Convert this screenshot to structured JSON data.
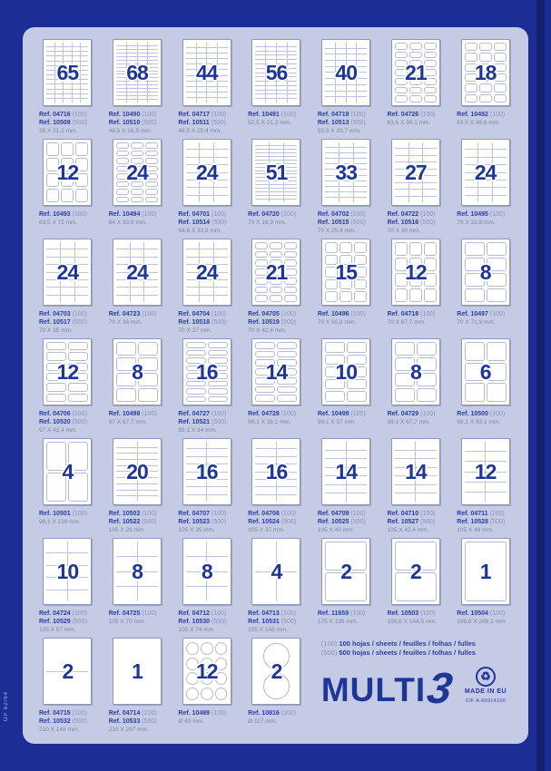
{
  "side_text": "OP 62/64",
  "footer": {
    "legend": [
      {
        "qty": "(100)",
        "text": "100 hojas / sheets / feuilles / folhas / fulles"
      },
      {
        "qty": "(500)",
        "text": "500 hojas / sheets / feuilles / folhas / fulles"
      }
    ],
    "brand": {
      "name": "MULTI",
      "three": "3"
    },
    "recycle_icon": "♻",
    "made_in": "MADE IN EU",
    "cif": "CIF A-60914166"
  },
  "colors": {
    "background": "#1c2e95",
    "panel": "#c6cbe5",
    "number": "#1e3697",
    "ref_text": "#2740a3",
    "muted_text": "#7d85a0"
  },
  "grid": {
    "rows": [
      {
        "cells": [
          {
            "n": "65",
            "refs": [
              {
                "ref": "Ref. 04716",
                "qty": "(100)"
              },
              {
                "ref": "Ref. 10509",
                "qty": "(500)"
              }
            ],
            "dims": "38 X 21,2 mm.",
            "cols": 5,
            "rows": 13,
            "style": "lined"
          },
          {
            "n": "68",
            "refs": [
              {
                "ref": "Ref. 10490",
                "qty": "(100)"
              },
              {
                "ref": "Ref. 10510",
                "qty": "(500)"
              }
            ],
            "dims": "48,5 X 16,9 mm.",
            "cols": 4,
            "rows": 17,
            "style": "lined"
          },
          {
            "n": "44",
            "refs": [
              {
                "ref": "Ref. 04717",
                "qty": "(100)"
              },
              {
                "ref": "Ref. 10511",
                "qty": "(500)"
              }
            ],
            "dims": "48,5 X 25,4 mm.",
            "cols": 4,
            "rows": 11,
            "style": "lined"
          },
          {
            "n": "56",
            "refs": [
              {
                "ref": "Ref. 10491",
                "qty": "(100)"
              }
            ],
            "dims": "52,5 X 21,2 mm.",
            "cols": 4,
            "rows": 14,
            "style": "lined"
          },
          {
            "n": "40",
            "refs": [
              {
                "ref": "Ref. 04719",
                "qty": "(100)"
              },
              {
                "ref": "Ref. 10513",
                "qty": "(500)"
              }
            ],
            "dims": "52,5 X 29,7 mm.",
            "cols": 4,
            "rows": 10,
            "style": "lined"
          },
          {
            "n": "21",
            "refs": [
              {
                "ref": "Ref. 04726",
                "qty": "(100)"
              }
            ],
            "dims": "63,5 X 38,1 mm.",
            "cols": 3,
            "rows": 7,
            "style": "rounded"
          },
          {
            "n": "18",
            "refs": [
              {
                "ref": "Ref. 10492",
                "qty": "(100)"
              }
            ],
            "dims": "63,5 X 46,6 mm.",
            "cols": 3,
            "rows": 6,
            "style": "rounded"
          }
        ]
      },
      {
        "cells": [
          {
            "n": "12",
            "refs": [
              {
                "ref": "Ref. 10493",
                "qty": "(100)"
              }
            ],
            "dims": "63,5 X 72 mm.",
            "cols": 3,
            "rows": 4,
            "style": "rounded"
          },
          {
            "n": "24",
            "refs": [
              {
                "ref": "Ref. 10494",
                "qty": "(100)"
              }
            ],
            "dims": "64 X 33,9 mm.",
            "cols": 3,
            "rows": 8,
            "style": "rounded"
          },
          {
            "n": "24",
            "refs": [
              {
                "ref": "Ref. 04701",
                "qty": "(100)"
              },
              {
                "ref": "Ref. 10514",
                "qty": "(500)"
              }
            ],
            "dims": "64,6 X 33,8 mm.",
            "cols": 3,
            "rows": 8,
            "style": "lined"
          },
          {
            "n": "51",
            "refs": [
              {
                "ref": "Ref. 04720",
                "qty": "(100)"
              }
            ],
            "dims": "70 X 16,9 mm.",
            "cols": 3,
            "rows": 17,
            "style": "lined"
          },
          {
            "n": "33",
            "refs": [
              {
                "ref": "Ref. 04702",
                "qty": "(100)"
              },
              {
                "ref": "Ref. 10515",
                "qty": "(500)"
              }
            ],
            "dims": "70 X 25,4 mm.",
            "cols": 3,
            "rows": 11,
            "style": "lined"
          },
          {
            "n": "27",
            "refs": [
              {
                "ref": "Ref. 04722",
                "qty": "(100)"
              },
              {
                "ref": "Ref. 10516",
                "qty": "(500)"
              }
            ],
            "dims": "70 X 30 mm.",
            "cols": 3,
            "rows": 9,
            "style": "lined"
          },
          {
            "n": "24",
            "refs": [
              {
                "ref": "Ref. 10495",
                "qty": "(100)"
              }
            ],
            "dims": "70 X 33,8 mm.",
            "cols": 3,
            "rows": 8,
            "style": "lined"
          }
        ]
      },
      {
        "cells": [
          {
            "n": "24",
            "refs": [
              {
                "ref": "Ref. 04703",
                "qty": "(100)"
              },
              {
                "ref": "Ref. 10517",
                "qty": "(500)"
              }
            ],
            "dims": "70 X 35 mm.",
            "cols": 3,
            "rows": 8,
            "style": "lined"
          },
          {
            "n": "24",
            "refs": [
              {
                "ref": "Ref. 04723",
                "qty": "(100)"
              }
            ],
            "dims": "70 X 36 mm.",
            "cols": 3,
            "rows": 8,
            "style": "lined"
          },
          {
            "n": "24",
            "refs": [
              {
                "ref": "Ref. 04704",
                "qty": "(100)"
              },
              {
                "ref": "Ref. 10518",
                "qty": "(500)"
              }
            ],
            "dims": "70 X 37 mm.",
            "cols": 3,
            "rows": 8,
            "style": "lined"
          },
          {
            "n": "21",
            "refs": [
              {
                "ref": "Ref. 04705",
                "qty": "(100)"
              },
              {
                "ref": "Ref. 10519",
                "qty": "(500)"
              }
            ],
            "dims": "70 X 42,4 mm.",
            "cols": 3,
            "rows": 7,
            "style": "rounded"
          },
          {
            "n": "15",
            "refs": [
              {
                "ref": "Ref. 10496",
                "qty": "(100)"
              }
            ],
            "dims": "70 X 50,8 mm.",
            "cols": 3,
            "rows": 5,
            "style": "rounded"
          },
          {
            "n": "12",
            "refs": [
              {
                "ref": "Ref. 04718",
                "qty": "(100)"
              }
            ],
            "dims": "70 X 67,7 mm.",
            "cols": 3,
            "rows": 4,
            "style": "rounded"
          },
          {
            "n": "8",
            "refs": [
              {
                "ref": "Ref. 10497",
                "qty": "(100)"
              }
            ],
            "dims": "70 X 71,9 mm.",
            "cols": 2,
            "rows": 4,
            "style": "rounded"
          }
        ]
      },
      {
        "cells": [
          {
            "n": "12",
            "refs": [
              {
                "ref": "Ref. 04706",
                "qty": "(100)"
              },
              {
                "ref": "Ref. 10520",
                "qty": "(500)"
              }
            ],
            "dims": "97 X 42,4 mm.",
            "cols": 2,
            "rows": 6,
            "style": "rounded"
          },
          {
            "n": "8",
            "refs": [
              {
                "ref": "Ref. 10498",
                "qty": "(100)"
              }
            ],
            "dims": "97 X 67,7 mm.",
            "cols": 2,
            "rows": 4,
            "style": "rounded"
          },
          {
            "n": "16",
            "refs": [
              {
                "ref": "Ref. 04727",
                "qty": "(100)"
              },
              {
                "ref": "Ref. 10521",
                "qty": "(500)"
              }
            ],
            "dims": "99,1 X 34 mm.",
            "cols": 2,
            "rows": 8,
            "style": "rounded"
          },
          {
            "n": "14",
            "refs": [
              {
                "ref": "Ref. 04728",
                "qty": "(100)"
              }
            ],
            "dims": "99,1 X 38,1 mm.",
            "cols": 2,
            "rows": 7,
            "style": "rounded"
          },
          {
            "n": "10",
            "refs": [
              {
                "ref": "Ref. 10499",
                "qty": "(100)"
              }
            ],
            "dims": "99,1 X 57 mm.",
            "cols": 2,
            "rows": 5,
            "style": "rounded"
          },
          {
            "n": "8",
            "refs": [
              {
                "ref": "Ref. 04729",
                "qty": "(100)"
              }
            ],
            "dims": "99,1 X 67,7 mm.",
            "cols": 2,
            "rows": 4,
            "style": "rounded"
          },
          {
            "n": "6",
            "refs": [
              {
                "ref": "Ref. 10500",
                "qty": "(100)"
              }
            ],
            "dims": "99,1 X 93,1 mm.",
            "cols": 2,
            "rows": 3,
            "style": "rounded"
          }
        ]
      },
      {
        "cells": [
          {
            "n": "4",
            "refs": [
              {
                "ref": "Ref. 10501",
                "qty": "(100)"
              }
            ],
            "dims": "99,1 X 139 mm.",
            "cols": 2,
            "rows": 2,
            "style": "rounded"
          },
          {
            "n": "20",
            "refs": [
              {
                "ref": "Ref. 10502",
                "qty": "(100)"
              },
              {
                "ref": "Ref. 10522",
                "qty": "(500)"
              }
            ],
            "dims": "105 X 29 mm.",
            "cols": 2,
            "rows": 10,
            "style": "lined"
          },
          {
            "n": "16",
            "refs": [
              {
                "ref": "Ref. 04707",
                "qty": "(100)"
              },
              {
                "ref": "Ref. 10523",
                "qty": "(500)"
              }
            ],
            "dims": "105 X 35 mm.",
            "cols": 2,
            "rows": 8,
            "style": "lined"
          },
          {
            "n": "16",
            "refs": [
              {
                "ref": "Ref. 04708",
                "qty": "(100)"
              },
              {
                "ref": "Ref. 10524",
                "qty": "(500)"
              }
            ],
            "dims": "105 X 37 mm.",
            "cols": 2,
            "rows": 8,
            "style": "lined"
          },
          {
            "n": "14",
            "refs": [
              {
                "ref": "Ref. 04709",
                "qty": "(100)"
              },
              {
                "ref": "Ref. 10525",
                "qty": "(500)"
              }
            ],
            "dims": "105 X 40 mm.",
            "cols": 2,
            "rows": 7,
            "style": "lined"
          },
          {
            "n": "14",
            "refs": [
              {
                "ref": "Ref. 04710",
                "qty": "(100)"
              },
              {
                "ref": "Ref. 10527",
                "qty": "(500)"
              }
            ],
            "dims": "105 X 42,4 mm.",
            "cols": 2,
            "rows": 7,
            "style": "lined"
          },
          {
            "n": "12",
            "refs": [
              {
                "ref": "Ref. 04711",
                "qty": "(100)"
              },
              {
                "ref": "Ref. 10528",
                "qty": "(500)"
              }
            ],
            "dims": "105 X 48 mm.",
            "cols": 2,
            "rows": 6,
            "style": "lined"
          }
        ]
      },
      {
        "cells": [
          {
            "n": "10",
            "refs": [
              {
                "ref": "Ref. 04724",
                "qty": "(100)"
              },
              {
                "ref": "Ref. 10529",
                "qty": "(500)"
              }
            ],
            "dims": "105 X 57 mm.",
            "cols": 2,
            "rows": 5,
            "style": "lined"
          },
          {
            "n": "8",
            "refs": [
              {
                "ref": "Ref. 04725",
                "qty": "(100)"
              }
            ],
            "dims": "105 X 70 mm.",
            "cols": 2,
            "rows": 4,
            "style": "lined"
          },
          {
            "n": "8",
            "refs": [
              {
                "ref": "Ref. 04712",
                "qty": "(100)"
              },
              {
                "ref": "Ref. 10530",
                "qty": "(500)"
              }
            ],
            "dims": "105 X 74 mm.",
            "cols": 2,
            "rows": 4,
            "style": "lined"
          },
          {
            "n": "4",
            "refs": [
              {
                "ref": "Ref. 04713",
                "qty": "(100)"
              },
              {
                "ref": "Ref. 10531",
                "qty": "(500)"
              }
            ],
            "dims": "105 X 148 mm.",
            "cols": 2,
            "rows": 2,
            "style": "lined"
          },
          {
            "n": "2",
            "refs": [
              {
                "ref": "Ref. 11659",
                "qty": "(100)"
              }
            ],
            "dims": "175 X 135 mm.",
            "cols": 1,
            "rows": 2,
            "style": "rounded"
          },
          {
            "n": "2",
            "refs": [
              {
                "ref": "Ref. 10503",
                "qty": "(100)"
              }
            ],
            "dims": "199,6 X 144,5 mm.",
            "cols": 1,
            "rows": 2,
            "style": "rounded"
          },
          {
            "n": "1",
            "refs": [
              {
                "ref": "Ref. 10504",
                "qty": "(100)"
              }
            ],
            "dims": "199,6 X 289,1 mm.",
            "cols": 1,
            "rows": 1,
            "style": "rounded"
          }
        ]
      },
      {
        "cells": [
          {
            "n": "2",
            "refs": [
              {
                "ref": "Ref. 04715",
                "qty": "(100)"
              },
              {
                "ref": "Ref. 10532",
                "qty": "(500)"
              }
            ],
            "dims": "210 X 148 mm.",
            "cols": 1,
            "rows": 2,
            "style": "lined"
          },
          {
            "n": "1",
            "refs": [
              {
                "ref": "Ref. 04714",
                "qty": "(100)"
              },
              {
                "ref": "Ref. 10533",
                "qty": "(500)"
              }
            ],
            "dims": "210 X 297 mm.",
            "cols": 1,
            "rows": 1,
            "style": "lined"
          },
          {
            "n": "12",
            "refs": [
              {
                "ref": "Ref. 10489",
                "qty": "(100)"
              }
            ],
            "dims": "Ø 60 mm.",
            "cols": 3,
            "rows": 4,
            "style": "circles"
          },
          {
            "n": "2",
            "refs": [
              {
                "ref": "Ref. 10816",
                "qty": "(100)"
              }
            ],
            "dims": "Ø 117 mm.",
            "cols": 1,
            "rows": 2,
            "style": "circles"
          }
        ]
      }
    ]
  }
}
